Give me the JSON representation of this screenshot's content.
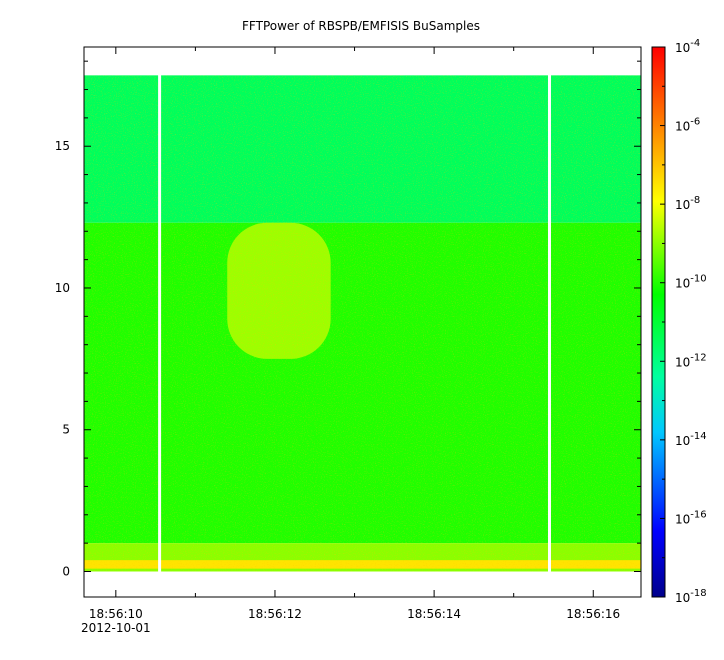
{
  "title": "FFTPower of RBSPB/EMFISIS  BuSamples",
  "chart_data": {
    "type": "heatmap",
    "title": "FFTPower of RBSPB/EMFISIS  BuSamples",
    "xlabel": "",
    "ylabel": "",
    "x_axis": {
      "range_seconds_label": [
        "18:56:09.6",
        "18:56:16.6"
      ],
      "ticks": [
        "18:56:10",
        "18:56:12",
        "18:56:14",
        "18:56:16"
      ],
      "date_label": "2012-10-01"
    },
    "y_axis": {
      "ylim": [
        -0.9,
        18.5
      ],
      "ticks": [
        "0",
        "5",
        "10",
        "15"
      ]
    },
    "colorbar": {
      "scale": "log",
      "range": [
        "1e-18",
        "1e-4"
      ],
      "ticks": [
        {
          "base": "10",
          "exp": "-4"
        },
        {
          "base": "10",
          "exp": "-6"
        },
        {
          "base": "10",
          "exp": "-8"
        },
        {
          "base": "10",
          "exp": "-10"
        },
        {
          "base": "10",
          "exp": "-12"
        },
        {
          "base": "10",
          "exp": "-14"
        },
        {
          "base": "10",
          "exp": "-16"
        },
        {
          "base": "10",
          "exp": "-18"
        }
      ],
      "colormap": [
        "#00008b",
        "#0000ff",
        "#00c8ff",
        "#00ffa0",
        "#00ff00",
        "#ffff00",
        "#ff8000",
        "#ff0000"
      ]
    },
    "data_range": {
      "freq_max": 17.5,
      "time_start": "18:56:09.6",
      "time_end": "18:56:16.6"
    },
    "data_gaps": [
      "18:56:10.55",
      "18:56:15.45"
    ],
    "power_regions": [
      {
        "freq_range": [
          12.3,
          17.5
        ],
        "power_log10": -11.5,
        "description": "upper band"
      },
      {
        "freq_range": [
          1.0,
          12.3
        ],
        "power_log10": -10.0
      },
      {
        "freq_range": [
          7.5,
          12.3
        ],
        "time_range": [
          "18:56:11.4",
          "18:56:12.7"
        ],
        "power_log10": -8.7
      },
      {
        "freq_range": [
          0.0,
          1.0
        ],
        "power_log10": -9.0
      },
      {
        "freq_range": [
          0.1,
          0.4
        ],
        "power_log10": -7.5
      }
    ],
    "colors": {
      "background": "#ffffff",
      "gap": "#ffffff",
      "axis": "#000000"
    }
  }
}
